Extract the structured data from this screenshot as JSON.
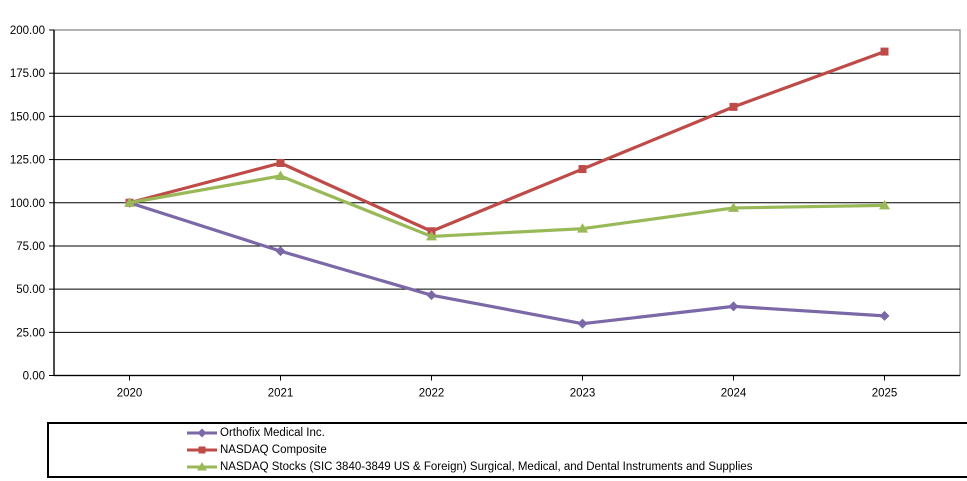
{
  "chart_data": {
    "type": "line",
    "title": "",
    "xlabel": "",
    "ylabel": "",
    "x_categories": [
      "2020",
      "2021",
      "2022",
      "2023",
      "2024",
      "2025"
    ],
    "y_ticks": [
      0,
      25,
      50,
      75,
      100,
      125,
      150,
      175,
      200
    ],
    "y_tick_labels": [
      "0.00",
      "25.00",
      "50.00",
      "75.00",
      "100.00",
      "125.00",
      "150.00",
      "175.00",
      "200.00"
    ],
    "ylim": [
      0,
      200
    ],
    "grid": "horizontal",
    "legend_position": "bottom",
    "series": [
      {
        "name": "Orthofix Medical Inc.",
        "color": "#7B68A7",
        "marker": "diamond",
        "values": [
          100,
          72,
          46.5,
          30,
          40,
          34.5
        ]
      },
      {
        "name": "NASDAQ Composite",
        "color": "#BE4B48",
        "marker": "square",
        "values": [
          100,
          123,
          83.5,
          119.5,
          155.5,
          187.5
        ]
      },
      {
        "name": "NASDAQ Stocks (SIC 3840-3849 US & Foreign) Surgical, Medical, and Dental Instruments and Supplies",
        "color": "#99B958",
        "marker": "triangle",
        "values": [
          100,
          115.5,
          80.5,
          85,
          97,
          98.5
        ]
      }
    ],
    "colors": {
      "plot_border": "#8A8A8A",
      "gridline": "#000000",
      "axis_line": "#000000",
      "text": "#000000",
      "background": "#FFFFFF"
    }
  }
}
